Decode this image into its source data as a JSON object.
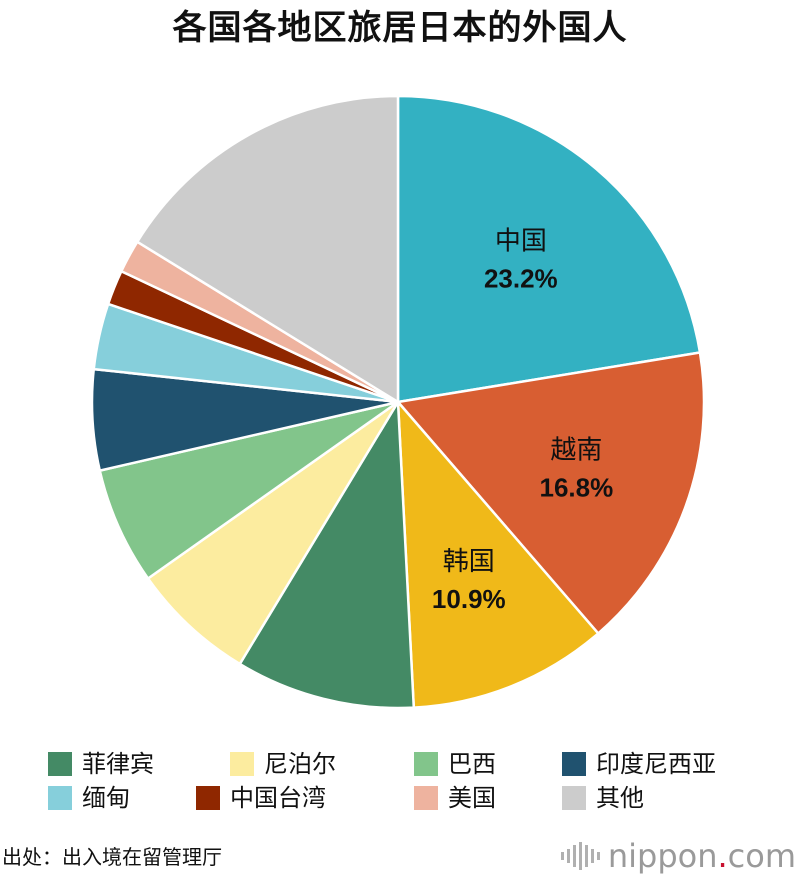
{
  "title": "各国各地区旅居日本的外国人",
  "chart_data": {
    "type": "pie",
    "slices": [
      {
        "name": "中国",
        "value": 23.2,
        "color": "#33b1c2",
        "label_name": "中国",
        "label_value": "23.2%"
      },
      {
        "name": "越南",
        "value": 16.8,
        "color": "#d85e32",
        "label_name": "越南",
        "label_value": "16.8%"
      },
      {
        "name": "韩国",
        "value": 10.9,
        "color": "#f0b919",
        "label_name": "韩国",
        "label_value": "10.9%"
      },
      {
        "name": "菲律宾",
        "value": 9.8,
        "color": "#448a65",
        "label_name": "",
        "label_value": ""
      },
      {
        "name": "尼泊尔",
        "value": 6.8,
        "color": "#fcec9f",
        "label_name": "",
        "label_value": ""
      },
      {
        "name": "巴西",
        "value": 6.4,
        "color": "#82c58b",
        "label_name": "",
        "label_value": ""
      },
      {
        "name": "印度尼西亚",
        "value": 5.5,
        "color": "#20526f",
        "label_name": "",
        "label_value": ""
      },
      {
        "name": "缅甸",
        "value": 3.6,
        "color": "#86cfdb",
        "label_name": "",
        "label_value": ""
      },
      {
        "name": "中国台湾",
        "value": 1.9,
        "color": "#8f2700",
        "label_name": "",
        "label_value": ""
      },
      {
        "name": "美国",
        "value": 1.8,
        "color": "#eeb39f",
        "label_name": "",
        "label_value": ""
      },
      {
        "name": "其他",
        "value": 16.8,
        "color": "#cccccc",
        "label_name": "",
        "label_value": ""
      }
    ],
    "legend": [
      {
        "name": "菲律宾",
        "color": "#448a65"
      },
      {
        "name": "尼泊尔",
        "color": "#fcec9f"
      },
      {
        "name": "巴西",
        "color": "#82c58b"
      },
      {
        "name": "印度尼西亚",
        "color": "#20526f"
      },
      {
        "name": "缅甸",
        "color": "#86cfdb"
      },
      {
        "name": "中国台湾",
        "color": "#8f2700"
      },
      {
        "name": "美国",
        "color": "#eeb39f"
      },
      {
        "name": "其他",
        "color": "#cccccc"
      }
    ],
    "legend_placement": "bottom",
    "grid": false
  },
  "source": "出处：出入境在留管理厅",
  "brand": {
    "name": "nippon",
    "dot": ".",
    "tld": "com",
    "icon": "nippon-bars-icon"
  },
  "colors": {
    "label_text": "#111111",
    "slice_border": "#ffffff",
    "brand_text": "#9a9a9a",
    "brand_dot": "#c8102e"
  }
}
